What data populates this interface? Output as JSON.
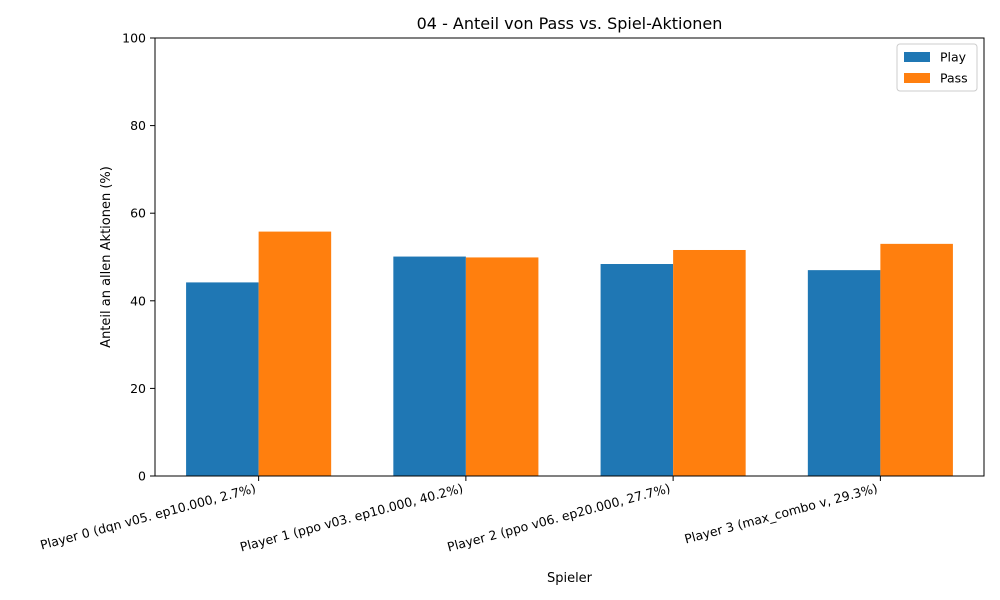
{
  "chart_data": {
    "type": "bar",
    "title": "04 - Anteil von Pass vs. Spiel-Aktionen",
    "xlabel": "Spieler",
    "ylabel": "Anteil an allen Aktionen (%)",
    "ylim": [
      0,
      100
    ],
    "yticks": [
      "0",
      "20",
      "40",
      "60",
      "80",
      "100"
    ],
    "categories": [
      "Player 0 (dqn v05. ep10.000, 2.7%)",
      "Player 1 (ppo v03. ep10.000, 40.2%)",
      "Player 2 (ppo v06. ep20.000, 27.7%)",
      "Player 3 (max_combo v, 29.3%)"
    ],
    "series": [
      {
        "name": "Play",
        "color": "#1f77b4",
        "values": [
          44.2,
          50.1,
          48.4,
          47.0
        ]
      },
      {
        "name": "Pass",
        "color": "#ff7f0e",
        "values": [
          55.8,
          49.9,
          51.6,
          53.0
        ]
      }
    ],
    "legend": "top-right",
    "grid": false
  }
}
